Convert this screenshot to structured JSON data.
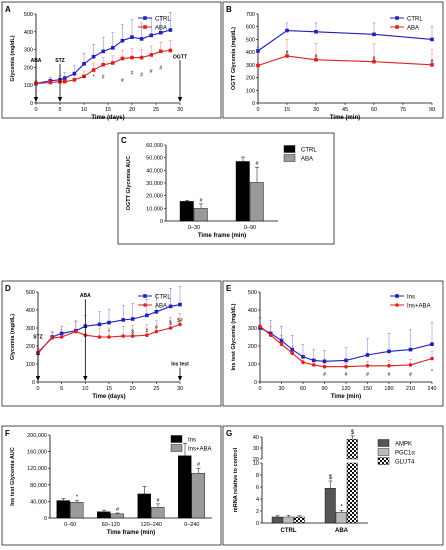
{
  "figure_bg": "#ffffff",
  "chart_data": [
    {
      "id": "A",
      "type": "line",
      "panel_label": "A",
      "xlabel": "Time (days)",
      "ylabel": "Glycemia (mg/dL)",
      "xlim": [
        0,
        30
      ],
      "ylim": [
        0,
        500
      ],
      "xticks": [
        0,
        5,
        10,
        15,
        20,
        25,
        30
      ],
      "yticks": [
        0,
        100,
        200,
        300,
        400,
        500
      ],
      "legend": "top-right",
      "series": [
        {
          "name": "CTRL",
          "color": "#1f1fbf",
          "marker": "square",
          "x": [
            0,
            3,
            5,
            6,
            8,
            10,
            12,
            14,
            16,
            18,
            20,
            22,
            24,
            26,
            28
          ],
          "y": [
            110,
            125,
            130,
            140,
            165,
            220,
            260,
            290,
            310,
            350,
            370,
            360,
            380,
            395,
            410
          ],
          "err": [
            15,
            20,
            25,
            30,
            45,
            60,
            70,
            80,
            85,
            90,
            100,
            90,
            95,
            90,
            100
          ]
        },
        {
          "name": "ABA",
          "color": "#e02020",
          "marker": "square",
          "x": [
            0,
            3,
            5,
            6,
            8,
            10,
            12,
            14,
            16,
            18,
            20,
            22,
            24,
            26,
            28
          ],
          "y": [
            110,
            115,
            120,
            120,
            130,
            150,
            185,
            215,
            225,
            250,
            255,
            255,
            270,
            290,
            295
          ],
          "err": [
            15,
            15,
            20,
            20,
            25,
            30,
            35,
            40,
            40,
            45,
            50,
            45,
            50,
            50,
            55
          ]
        }
      ],
      "annotations": [
        {
          "text": "ABA",
          "x": 0,
          "y": 220,
          "arrow": true
        },
        {
          "text": "STZ",
          "x": 5,
          "y": 220,
          "arrow": true
        },
        {
          "text": "OGTT",
          "x": 30,
          "y": 240,
          "arrow": true
        }
      ],
      "sig_marks": [
        {
          "text": "#",
          "x": 14,
          "y": 150
        },
        {
          "text": "#",
          "x": 18,
          "y": 130
        },
        {
          "text": "#",
          "x": 20,
          "y": 170
        },
        {
          "text": "#",
          "x": 22,
          "y": 160
        },
        {
          "text": "#",
          "x": 24,
          "y": 180
        },
        {
          "text": "#",
          "x": 26,
          "y": 200
        },
        {
          "text": "*",
          "x": 10,
          "y": 140
        },
        {
          "text": "*",
          "x": 12,
          "y": 150
        }
      ]
    },
    {
      "id": "B",
      "type": "line",
      "panel_label": "B",
      "xlabel": "Time (min)",
      "ylabel": "OGTT Glycemia (mg/dL)",
      "xlim": [
        0,
        90
      ],
      "ylim": [
        0,
        700
      ],
      "xticks": [
        0,
        15,
        30,
        45,
        60,
        75,
        90
      ],
      "yticks": [
        0,
        100,
        200,
        300,
        400,
        500,
        600,
        700
      ],
      "legend": "top-right",
      "series": [
        {
          "name": "CTRL",
          "color": "#1f1fbf",
          "marker": "square",
          "x": [
            0,
            15,
            30,
            60,
            90
          ],
          "y": [
            410,
            570,
            560,
            540,
            500
          ],
          "err": [
            30,
            60,
            70,
            90,
            100
          ]
        },
        {
          "name": "ABA",
          "color": "#e02020",
          "marker": "square",
          "x": [
            0,
            15,
            30,
            60,
            90
          ],
          "y": [
            295,
            370,
            340,
            325,
            300
          ],
          "err": [
            100,
            130,
            130,
            140,
            120
          ]
        }
      ],
      "sig_marks": [
        {
          "text": "#",
          "x": 15,
          "y": 400
        },
        {
          "text": "#",
          "x": 30,
          "y": 370
        },
        {
          "text": "#",
          "x": 60,
          "y": 355
        },
        {
          "text": "#",
          "x": 90,
          "y": 330
        }
      ]
    },
    {
      "id": "C",
      "type": "bar",
      "panel_label": "C",
      "xlabel": "Time frame (min)",
      "ylabel": "OGTT Glycemia AUC",
      "ylim": [
        0,
        60000
      ],
      "yticks": [
        0,
        10000,
        20000,
        30000,
        40000,
        50000,
        60000
      ],
      "ytick_labels": [
        "0",
        "10,000",
        "20,000",
        "30,000",
        "40,000",
        "50,000",
        "60,000"
      ],
      "categories": [
        "0–30",
        "0–90"
      ],
      "legend": "top-right",
      "series": [
        {
          "name": "CTRL",
          "color": "#000000",
          "values": [
            15500,
            47000
          ],
          "err": [
            600,
            3500
          ]
        },
        {
          "name": "ABA",
          "color": "#9a9a9a",
          "values": [
            10000,
            30500
          ],
          "err": [
            3500,
            12000
          ]
        }
      ],
      "sig_marks": [
        {
          "text": "#",
          "category": 0,
          "series": 1
        },
        {
          "text": "#",
          "category": 1,
          "series": 1
        }
      ]
    },
    {
      "id": "D",
      "type": "line",
      "panel_label": "D",
      "xlabel": "Time (days)",
      "ylabel": "Glycemia (mg/dL)",
      "xlim": [
        0,
        30
      ],
      "ylim": [
        0,
        500
      ],
      "xticks": [
        0,
        5,
        10,
        15,
        20,
        25,
        30
      ],
      "yticks": [
        0,
        100,
        200,
        300,
        400,
        500
      ],
      "legend": "top-right",
      "series": [
        {
          "name": "CTRL",
          "color": "#1f1fbf",
          "marker": "square",
          "x": [
            0,
            3,
            5,
            8,
            10,
            13,
            15,
            18,
            20,
            23,
            25,
            28,
            30
          ],
          "y": [
            160,
            250,
            270,
            285,
            310,
            320,
            330,
            345,
            350,
            370,
            390,
            420,
            430
          ],
          "err": [
            20,
            30,
            40,
            50,
            60,
            70,
            75,
            80,
            85,
            90,
            95,
            100,
            100
          ]
        },
        {
          "name": "ABA",
          "color": "#e02020",
          "marker": "circle",
          "x": [
            0,
            3,
            5,
            8,
            10,
            13,
            15,
            18,
            20,
            23,
            25,
            28,
            30
          ],
          "y": [
            165,
            245,
            250,
            280,
            260,
            250,
            250,
            255,
            255,
            260,
            280,
            300,
            320
          ],
          "err": [
            20,
            30,
            40,
            60,
            60,
            50,
            50,
            55,
            60,
            60,
            60,
            60,
            60
          ]
        }
      ],
      "annotations": [
        {
          "text": "STZ",
          "x": 0,
          "y": 230,
          "arrow": true
        },
        {
          "text": "ABA",
          "x": 10,
          "y": 460,
          "arrow": true
        },
        {
          "text": "Ins test",
          "x": 30,
          "y": 80,
          "arrow": true
        }
      ],
      "sig_marks": [
        {
          "text": "*",
          "x": 15,
          "y": 280
        },
        {
          "text": "$",
          "x": 20,
          "y": 280
        },
        {
          "text": "#",
          "x": 23,
          "y": 285
        },
        {
          "text": "#",
          "x": 25,
          "y": 305
        },
        {
          "text": "$",
          "x": 28,
          "y": 330
        },
        {
          "text": "$#",
          "x": 30,
          "y": 345
        }
      ]
    },
    {
      "id": "E",
      "type": "line",
      "panel_label": "E",
      "xlabel": "Time (min)",
      "ylabel": "Ins test Glycemia (mg/dL)",
      "xlim": [
        0,
        240
      ],
      "ylim": [
        0,
        500
      ],
      "xticks": [
        0,
        30,
        60,
        90,
        120,
        150,
        180,
        210,
        240
      ],
      "yticks": [
        0,
        100,
        200,
        300,
        400,
        500
      ],
      "legend": "top-right",
      "series": [
        {
          "name": "Ins",
          "color": "#1f1fbf",
          "marker": "square",
          "x": [
            0,
            15,
            30,
            45,
            60,
            75,
            90,
            120,
            150,
            180,
            210,
            240
          ],
          "y": [
            300,
            270,
            230,
            180,
            140,
            120,
            115,
            120,
            150,
            170,
            180,
            210
          ],
          "err": [
            60,
            70,
            80,
            80,
            70,
            60,
            60,
            70,
            90,
            100,
            110,
            120
          ]
        },
        {
          "name": "Ins+ABA",
          "color": "#e02020",
          "marker": "circle",
          "x": [
            0,
            15,
            30,
            45,
            60,
            75,
            90,
            120,
            150,
            180,
            210,
            240
          ],
          "y": [
            310,
            260,
            210,
            160,
            110,
            95,
            85,
            85,
            90,
            90,
            95,
            130
          ],
          "err": [
            40,
            50,
            50,
            40,
            30,
            25,
            20,
            20,
            25,
            30,
            30,
            40
          ]
        }
      ],
      "sig_marks": [
        {
          "text": "#",
          "x": 90,
          "y": 45
        },
        {
          "text": "#",
          "x": 120,
          "y": 45
        },
        {
          "text": "#",
          "x": 150,
          "y": 45
        },
        {
          "text": "#",
          "x": 180,
          "y": 45
        },
        {
          "text": "#",
          "x": 210,
          "y": 45
        },
        {
          "text": "*",
          "x": 240,
          "y": 60
        }
      ]
    },
    {
      "id": "F",
      "type": "bar",
      "panel_label": "F",
      "xlabel": "Time frame (min)",
      "ylabel": "Ins test Glycemia AUC",
      "ylim": [
        0,
        200000
      ],
      "yticks": [
        0,
        40000,
        80000,
        120000,
        160000,
        200000
      ],
      "ytick_labels": [
        "0",
        "40,000",
        "80,000",
        "120,000",
        "160,000",
        "200,000"
      ],
      "categories": [
        "0–60",
        "60–120",
        "120–240",
        "0–240"
      ],
      "legend": "top-right",
      "series": [
        {
          "name": "Ins",
          "color": "#000000",
          "values": [
            42000,
            15000,
            58000,
            150000
          ],
          "err": [
            5000,
            4000,
            18000,
            30000
          ]
        },
        {
          "name": "Ins+ABA",
          "color": "#9a9a9a",
          "values": [
            38000,
            10000,
            26000,
            108000
          ],
          "err": [
            4000,
            2000,
            8000,
            12000
          ]
        }
      ],
      "sig_marks": [
        {
          "text": "*",
          "category": 0,
          "series": 1
        },
        {
          "text": "#",
          "category": 1,
          "series": 1
        },
        {
          "text": "#",
          "category": 2,
          "series": 1
        },
        {
          "text": "#",
          "category": 3,
          "series": 1
        }
      ]
    },
    {
      "id": "G",
      "type": "bar",
      "panel_label": "G",
      "xlabel": "",
      "ylabel": "mRNA relative to control",
      "broken_axis": true,
      "ylim_lower": [
        0,
        10
      ],
      "ylim_upper": [
        20,
        40
      ],
      "yticks_lower": [
        0,
        2,
        4,
        6,
        8,
        10
      ],
      "yticks_upper": [
        20,
        30,
        40
      ],
      "categories": [
        "CTRL",
        "ABA"
      ],
      "legend": "top-right",
      "series": [
        {
          "name": "AMPK",
          "color": "#555555",
          "values": [
            1.0,
            5.8
          ],
          "err": [
            0.2,
            1.2
          ]
        },
        {
          "name": "PGC1α",
          "color": "#bbbbbb",
          "values": [
            1.0,
            1.8
          ],
          "err": [
            0.3,
            0.3
          ]
        },
        {
          "name": "GLUT4",
          "color": "#e8e8e8",
          "pattern": "checker",
          "values": [
            1.0,
            38.0
          ],
          "err": [
            0.2,
            3.0
          ]
        }
      ],
      "sig_marks": [
        {
          "text": "$",
          "category": 1,
          "series": 0
        },
        {
          "text": "*",
          "category": 1,
          "series": 1
        },
        {
          "text": "$",
          "category": 1,
          "series": 2
        }
      ]
    }
  ]
}
